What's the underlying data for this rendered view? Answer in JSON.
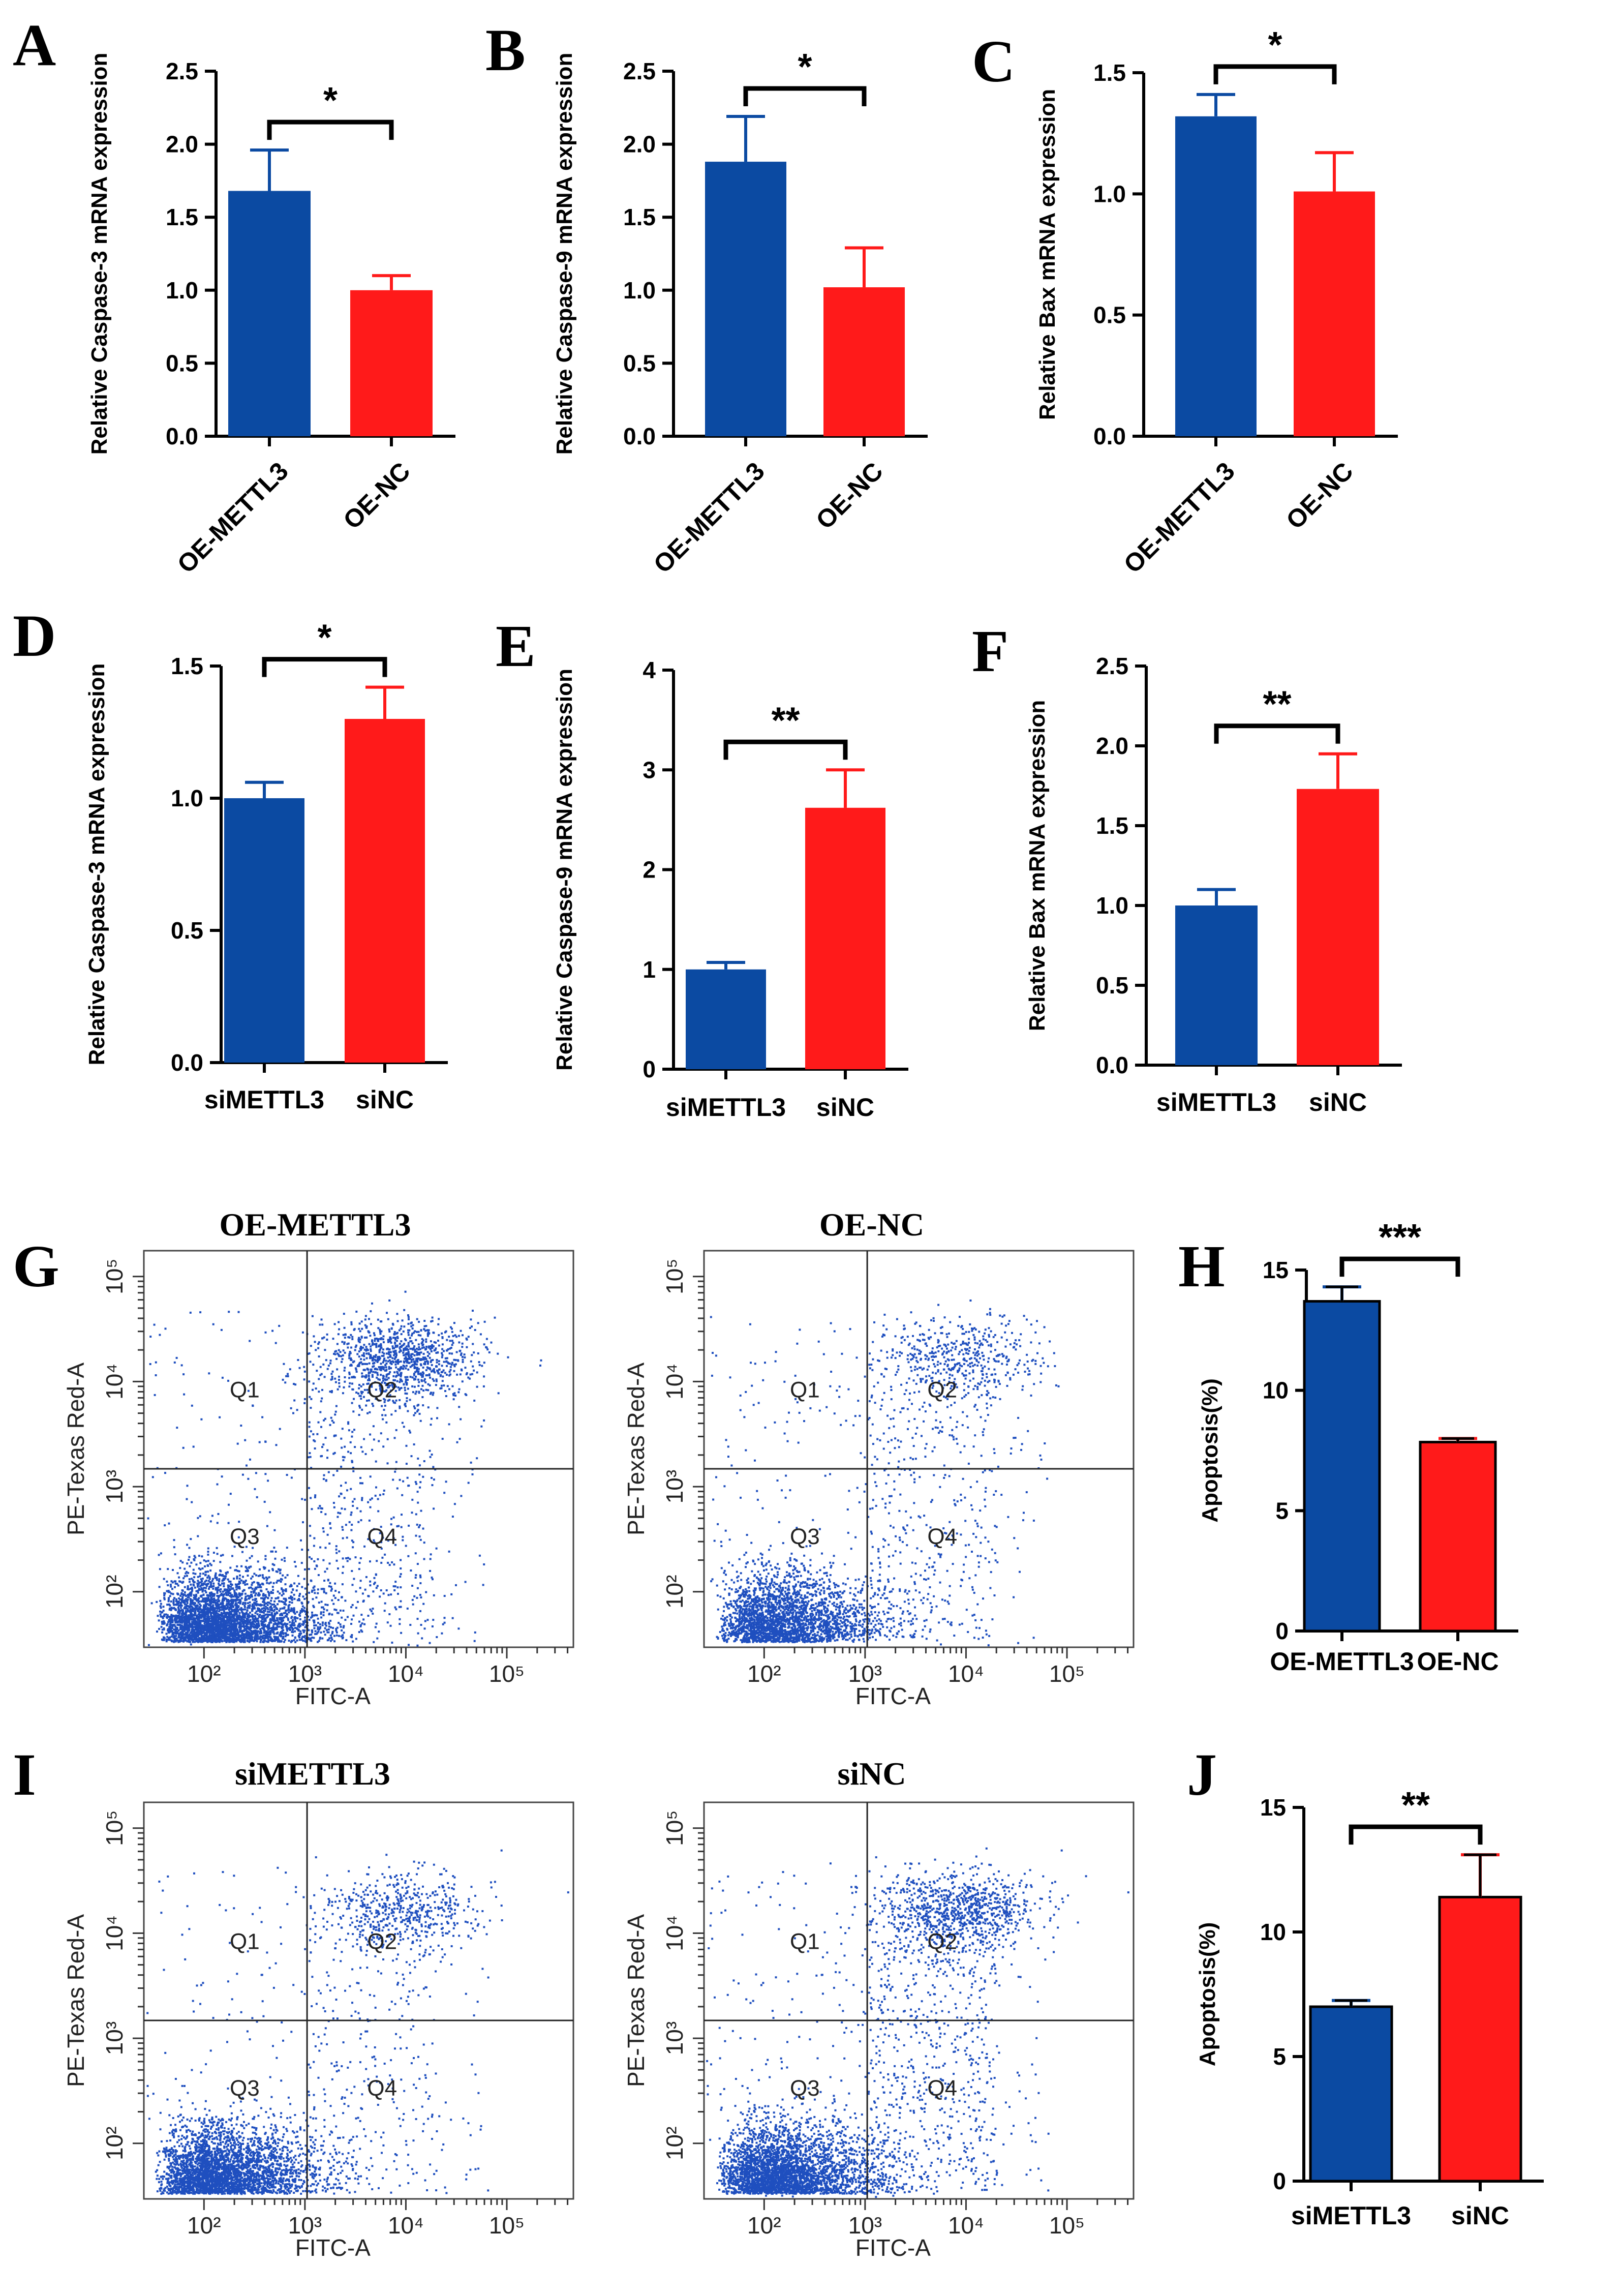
{
  "colors": {
    "blue": "#0b4aa2",
    "red": "#ff1a1a",
    "dot": "#1f4fbf",
    "axis": "#000000"
  },
  "panels": {
    "A": {
      "label": "A",
      "ylabel": "Relative Caspase-3 mRNA expression",
      "sig": "*"
    },
    "B": {
      "label": "B",
      "ylabel": "Relative Caspase-9 mRNA expression",
      "sig": "*"
    },
    "C": {
      "label": "C",
      "ylabel": "Relative Bax mRNA expression",
      "sig": "*"
    },
    "D": {
      "label": "D",
      "ylabel": "Relative Caspase-3 mRNA expression",
      "sig": "*"
    },
    "E": {
      "label": "E",
      "ylabel": "Relative Caspase-9 mRNA expression",
      "sig": "**"
    },
    "F": {
      "label": "F",
      "ylabel": "Relative Bax mRNA expression",
      "sig": "**"
    },
    "G": {
      "label": "G",
      "left_title": "OE-METTL3",
      "right_title": "OE-NC"
    },
    "H": {
      "label": "H",
      "ylabel": "Apoptosis(%)",
      "sig": "***"
    },
    "I": {
      "label": "I",
      "left_title": "siMETTL3",
      "right_title": "siNC"
    },
    "J": {
      "label": "J",
      "ylabel": "Apoptosis(%)",
      "sig": "**"
    }
  },
  "flow": {
    "xlabel": "FITC-A",
    "ylabel": "PE-Texas Red-A",
    "quadrants": [
      "Q1",
      "Q2",
      "Q3",
      "Q4"
    ],
    "x_ticks": [
      "10²",
      "10³",
      "10⁴",
      "10⁵"
    ],
    "y_ticks": [
      "10²",
      "10³",
      "10⁴",
      "10⁵"
    ]
  },
  "chart_data": [
    {
      "id": "A",
      "type": "bar",
      "categories": [
        "OE-METTL3",
        "OE-NC"
      ],
      "values": [
        1.68,
        1.0
      ],
      "errors": [
        0.28,
        0.1
      ],
      "ylabel": "Relative Caspase-3 mRNA expression",
      "ylim": [
        0,
        2.5
      ],
      "yticks": [
        "0.0",
        "0.5",
        "1.0",
        "1.5",
        "2.0",
        "2.5"
      ],
      "significance": "*"
    },
    {
      "id": "B",
      "type": "bar",
      "categories": [
        "OE-METTL3",
        "OE-NC"
      ],
      "values": [
        1.88,
        1.02
      ],
      "errors": [
        0.31,
        0.27
      ],
      "ylabel": "Relative Caspase-9 mRNA expression",
      "ylim": [
        0,
        2.5
      ],
      "yticks": [
        "0.0",
        "0.5",
        "1.0",
        "1.5",
        "2.0",
        "2.5"
      ],
      "significance": "*"
    },
    {
      "id": "C",
      "type": "bar",
      "categories": [
        "OE-METTL3",
        "OE-NC"
      ],
      "values": [
        1.32,
        1.01
      ],
      "errors": [
        0.09,
        0.16
      ],
      "ylabel": "Relative Bax mRNA expression",
      "ylim": [
        0,
        1.5
      ],
      "yticks": [
        "0.0",
        "0.5",
        "1.0",
        "1.5"
      ],
      "significance": "*"
    },
    {
      "id": "D",
      "type": "bar",
      "categories": [
        "siMETTL3",
        "siNC"
      ],
      "values": [
        1.0,
        1.3
      ],
      "errors": [
        0.06,
        0.12
      ],
      "ylabel": "Relative Caspase-3 mRNA expression",
      "ylim": [
        0,
        1.5
      ],
      "yticks": [
        "0.0",
        "0.5",
        "1.0",
        "1.5"
      ],
      "significance": "*"
    },
    {
      "id": "E",
      "type": "bar",
      "categories": [
        "siMETTL3",
        "siNC"
      ],
      "values": [
        1.0,
        2.62
      ],
      "errors": [
        0.07,
        0.38
      ],
      "ylabel": "Relative Caspase-9 mRNA expression",
      "ylim": [
        0,
        4
      ],
      "yticks": [
        "0",
        "1",
        "2",
        "3",
        "4"
      ],
      "significance": "**"
    },
    {
      "id": "F",
      "type": "bar",
      "categories": [
        "siMETTL3",
        "siNC"
      ],
      "values": [
        1.0,
        1.73
      ],
      "errors": [
        0.1,
        0.22
      ],
      "ylabel": "Relative Bax mRNA expression",
      "ylim": [
        0,
        2.5
      ],
      "yticks": [
        "0.0",
        "0.5",
        "1.0",
        "1.5",
        "2.0",
        "2.5"
      ],
      "significance": "**"
    },
    {
      "id": "H",
      "type": "bar",
      "categories": [
        "OE-METTL3",
        "OE-NC"
      ],
      "values": [
        13.7,
        7.85
      ],
      "errors": [
        0.6,
        0.15
      ],
      "ylabel": "Apoptosis(%)",
      "ylim": [
        0,
        15
      ],
      "yticks": [
        "0",
        "5",
        "10",
        "15"
      ],
      "significance": "***"
    },
    {
      "id": "J",
      "type": "bar",
      "categories": [
        "siMETTL3",
        "siNC"
      ],
      "values": [
        7.0,
        11.4
      ],
      "errors": [
        0.25,
        1.7
      ],
      "ylabel": "Apoptosis(%)",
      "ylim": [
        0,
        15
      ],
      "yticks": [
        "0",
        "5",
        "10",
        "15"
      ],
      "significance": "**"
    }
  ]
}
